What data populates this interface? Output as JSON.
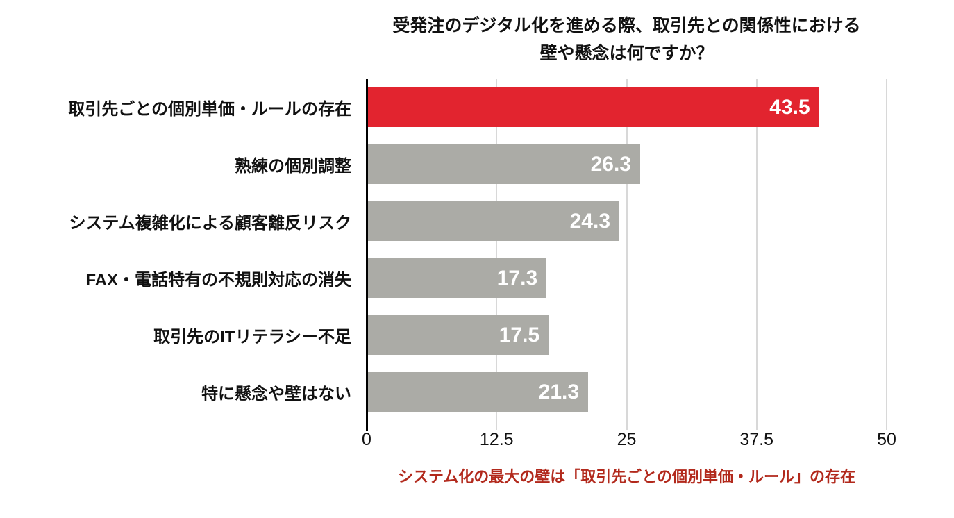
{
  "title": {
    "line1": "受発注のデジタル化を進める際、取引先との関係性における",
    "line2": "壁や懸念は何ですか？"
  },
  "caption": "システム化の最大の壁は「取引先ごとの個別単価・ルール」の存在",
  "chart_data": {
    "type": "bar",
    "orientation": "horizontal",
    "title": "受発注のデジタル化を進める際、取引先との関係性における壁や懸念は何ですか？",
    "categories": [
      "取引先ごとの個別単価・ルールの存在",
      "熟練の個別調整",
      "システム複雑化による顧客離反リスク",
      "FAX・電話特有の不規則対応の消失",
      "取引先のITリテラシー不足",
      "特に懸念や壁はない"
    ],
    "values": [
      43.5,
      26.3,
      24.3,
      17.3,
      17.5,
      21.3
    ],
    "highlight_index": 0,
    "xlim": [
      0,
      50
    ],
    "x_ticks": [
      0,
      12.5,
      25,
      37.5,
      50
    ],
    "grid": "vertical",
    "legend": "none",
    "annotation": "システム化の最大の壁は「取引先ごとの個別単価・ルール」の存在",
    "colors": {
      "highlight_bar": "#E2242F",
      "default_bar": "#ABABA6",
      "value_text": "#FFFFFF",
      "caption_text": "#B2291C",
      "gridline": "#D8D8D8",
      "axis": "#000000",
      "label_text": "#111111"
    }
  }
}
